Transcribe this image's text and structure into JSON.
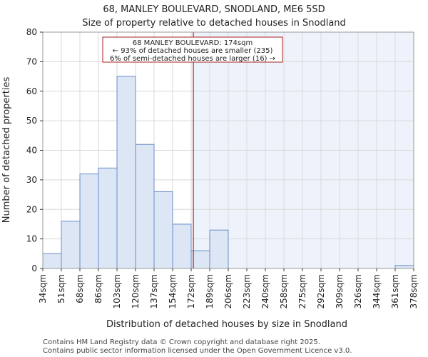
{
  "chart_data": {
    "type": "bar",
    "title": "68, MANLEY BOULEVARD, SNODLAND, ME6 5SD",
    "subtitle": "Size of property relative to detached houses in Snodland",
    "xlabel": "Distribution of detached houses by size in Snodland",
    "ylabel": "Number of detached properties",
    "ylim": [
      0,
      80
    ],
    "yticks": [
      0,
      10,
      20,
      30,
      40,
      50,
      60,
      70,
      80
    ],
    "bin_edges": [
      34,
      51,
      68,
      86,
      103,
      120,
      137,
      154,
      172,
      189,
      206,
      223,
      240,
      258,
      275,
      292,
      309,
      326,
      344,
      361,
      378
    ],
    "x_tick_labels": [
      "34sqm",
      "51sqm",
      "68sqm",
      "86sqm",
      "103sqm",
      "120sqm",
      "137sqm",
      "154sqm",
      "172sqm",
      "189sqm",
      "206sqm",
      "223sqm",
      "240sqm",
      "258sqm",
      "275sqm",
      "292sqm",
      "309sqm",
      "326sqm",
      "344sqm",
      "361sqm",
      "378sqm"
    ],
    "values": [
      5,
      16,
      32,
      34,
      65,
      42,
      26,
      15,
      6,
      13,
      0,
      0,
      0,
      0,
      0,
      0,
      0,
      0,
      0,
      1
    ],
    "marker": {
      "value": 174,
      "label": "68 MANLEY BOULEVARD: 174sqm"
    },
    "annotation": [
      "68 MANLEY BOULEVARD: 174sqm",
      "← 93% of detached houses are smaller (235)",
      "6% of semi-detached houses are larger (16) →"
    ],
    "grid": true,
    "colors": {
      "bar_fill": "#dce6f5",
      "bar_stroke": "#6a8cc8",
      "shade": "#eef2fa",
      "marker": "#aa2222",
      "grid": "#d9d9d9"
    }
  },
  "footer": [
    "Contains HM Land Registry data © Crown copyright and database right 2025.",
    "Contains public sector information licensed under the Open Government Licence v3.0."
  ]
}
